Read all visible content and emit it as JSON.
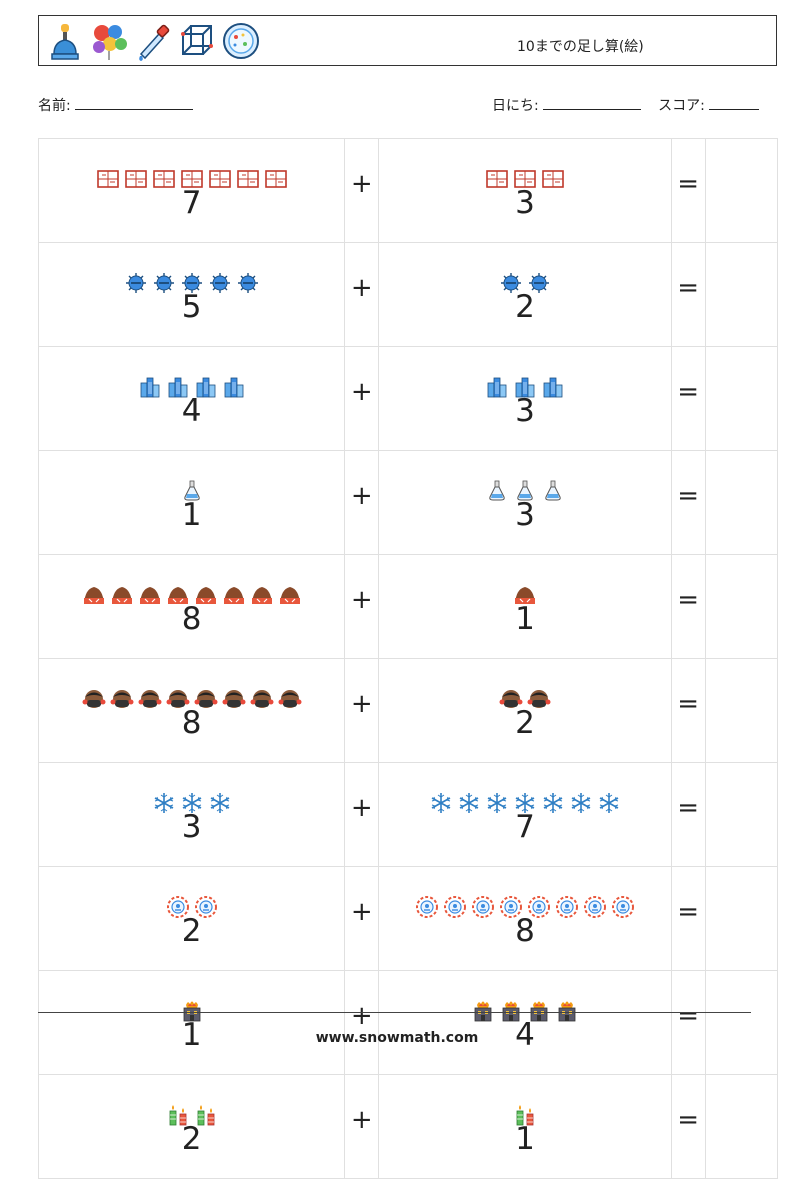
{
  "header": {
    "title": "10までの足し算(絵)",
    "icons": [
      "lamp-icon",
      "balloons-icon",
      "dropper-icon",
      "cube-icon",
      "petri-dish-icon"
    ]
  },
  "fields": {
    "name_label": "名前:",
    "date_label": "日にち:",
    "score_label": "スコア:"
  },
  "problems": [
    {
      "left": {
        "count": 7,
        "icon": "window-icon"
      },
      "op": "+",
      "right": {
        "count": 3,
        "icon": "window-icon"
      },
      "eq": "="
    },
    {
      "left": {
        "count": 5,
        "icon": "virus-icon"
      },
      "op": "+",
      "right": {
        "count": 2,
        "icon": "virus-icon"
      },
      "eq": "="
    },
    {
      "left": {
        "count": 4,
        "icon": "buildings-icon"
      },
      "op": "+",
      "right": {
        "count": 3,
        "icon": "buildings-icon"
      },
      "eq": "="
    },
    {
      "left": {
        "count": 1,
        "icon": "flask-icon"
      },
      "op": "+",
      "right": {
        "count": 3,
        "icon": "flask-icon"
      },
      "eq": "="
    },
    {
      "left": {
        "count": 8,
        "icon": "mound-icon"
      },
      "op": "+",
      "right": {
        "count": 1,
        "icon": "mound-icon"
      },
      "eq": "="
    },
    {
      "left": {
        "count": 8,
        "icon": "mask-face-icon"
      },
      "op": "+",
      "right": {
        "count": 2,
        "icon": "mask-face-icon"
      },
      "eq": "="
    },
    {
      "left": {
        "count": 3,
        "icon": "snowflake-icon"
      },
      "op": "+",
      "right": {
        "count": 7,
        "icon": "snowflake-icon"
      },
      "eq": "="
    },
    {
      "left": {
        "count": 2,
        "icon": "badge-icon"
      },
      "op": "+",
      "right": {
        "count": 8,
        "icon": "badge-icon"
      },
      "eq": "="
    },
    {
      "left": {
        "count": 1,
        "icon": "burning-house-icon"
      },
      "op": "+",
      "right": {
        "count": 4,
        "icon": "burning-house-icon"
      },
      "eq": "="
    },
    {
      "left": {
        "count": 2,
        "icon": "candles-icon"
      },
      "op": "+",
      "right": {
        "count": 1,
        "icon": "candles-icon"
      },
      "eq": "="
    }
  ],
  "footer": {
    "url": "www.snowmath.com"
  }
}
